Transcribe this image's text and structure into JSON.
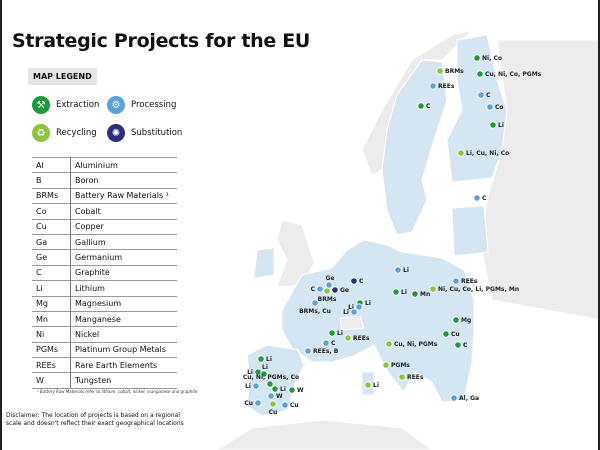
{
  "title": "Strategic Projects for the EU",
  "legend": {
    "heading": "MAP LEGEND",
    "types": [
      {
        "key": "extraction",
        "label": "Extraction",
        "color": "#1e9a3a",
        "icon": "pickaxe-icon"
      },
      {
        "key": "processing",
        "label": "Processing",
        "color": "#5aa2dd",
        "icon": "gears-icon"
      },
      {
        "key": "recycling",
        "label": "Recycling",
        "color": "#8cc63f",
        "icon": "recycle-icon"
      },
      {
        "key": "substitution",
        "label": "Substitution",
        "color": "#2c2f7a",
        "icon": "substitution-icon"
      }
    ],
    "abbreviations": [
      [
        "Al",
        "Aluminium"
      ],
      [
        "B",
        "Boron"
      ],
      [
        "BRMs",
        "Battery Raw Materials ¹"
      ],
      [
        "Co",
        "Cobalt"
      ],
      [
        "Cu",
        "Copper"
      ],
      [
        "Ga",
        "Gallium"
      ],
      [
        "Ge",
        "Germanium"
      ],
      [
        "C",
        "Graphite"
      ],
      [
        "Li",
        "Lithium"
      ],
      [
        "Mg",
        "Magnesium"
      ],
      [
        "Mn",
        "Manganese"
      ],
      [
        "Ni",
        "Nickel"
      ],
      [
        "PGMs",
        "Platinum Group Metals"
      ],
      [
        "REEs",
        "Rare Earth Elements"
      ],
      [
        "W",
        "Tungsten"
      ]
    ],
    "footnote": "¹ Battery Raw Materials refer to lithium, cobalt, nickel, manganese and graphite"
  },
  "disclaimer": "Disclaimer: The location of projects is based on a regional scale and doesn't reflect their exact geographical locations",
  "colors": {
    "eu_land": "#d5e6f3",
    "non_eu_land": "#ececec"
  },
  "projects": [
    {
      "label": "Ni, Co",
      "type": "extraction"
    },
    {
      "label": "BRMs",
      "type": "recycling"
    },
    {
      "label": "Cu, Ni, Co, PGMs",
      "type": "extraction"
    },
    {
      "label": "REEs",
      "type": "processing"
    },
    {
      "label": "C",
      "type": "processing"
    },
    {
      "label": "C",
      "type": "extraction"
    },
    {
      "label": "Co",
      "type": "processing"
    },
    {
      "label": "Li",
      "type": "extraction"
    },
    {
      "label": "Li, Cu, Ni, Co",
      "type": "recycling"
    },
    {
      "label": "C",
      "type": "processing"
    },
    {
      "label": "Li",
      "type": "processing"
    },
    {
      "label": "REEs",
      "type": "processing"
    },
    {
      "label": "C",
      "type": "substitution"
    },
    {
      "label": "Ge",
      "type": "processing"
    },
    {
      "label": "C",
      "type": "processing"
    },
    {
      "label": "Ge",
      "type": "substitution"
    },
    {
      "label": "BRMs",
      "type": "recycling"
    },
    {
      "label": "Ni, Cu, Co, Li, PGMs, Mn",
      "type": "recycling"
    },
    {
      "label": "Li",
      "type": "extraction"
    },
    {
      "label": "Mn",
      "type": "extraction"
    },
    {
      "label": "BRMs, Cu",
      "type": "processing"
    },
    {
      "label": "Li",
      "type": "extraction"
    },
    {
      "label": "Li",
      "type": "processing"
    },
    {
      "label": "Li",
      "type": "processing"
    },
    {
      "label": "Mg",
      "type": "extraction"
    },
    {
      "label": "Cu",
      "type": "extraction"
    },
    {
      "label": "Li",
      "type": "extraction"
    },
    {
      "label": "REEs",
      "type": "recycling"
    },
    {
      "label": "C",
      "type": "processing"
    },
    {
      "label": "C",
      "type": "extraction"
    },
    {
      "label": "Cu, Ni, PGMs",
      "type": "recycling"
    },
    {
      "label": "REEs, B",
      "type": "processing"
    },
    {
      "label": "PGMs",
      "type": "recycling"
    },
    {
      "label": "Li",
      "type": "extraction"
    },
    {
      "label": "REEs",
      "type": "recycling"
    },
    {
      "label": "Li",
      "type": "extraction"
    },
    {
      "label": "Li",
      "type": "extraction"
    },
    {
      "label": "Cu, Ni, PGMs, Co",
      "type": "extraction"
    },
    {
      "label": "Li",
      "type": "processing"
    },
    {
      "label": "Li",
      "type": "extraction"
    },
    {
      "label": "W",
      "type": "extraction"
    },
    {
      "label": "W",
      "type": "processing"
    },
    {
      "label": "Li",
      "type": "recycling"
    },
    {
      "label": "Cu",
      "type": "processing"
    },
    {
      "label": "Cu",
      "type": "recycling"
    },
    {
      "label": "Cu",
      "type": "processing"
    },
    {
      "label": "Al, Ga",
      "type": "processing"
    }
  ]
}
